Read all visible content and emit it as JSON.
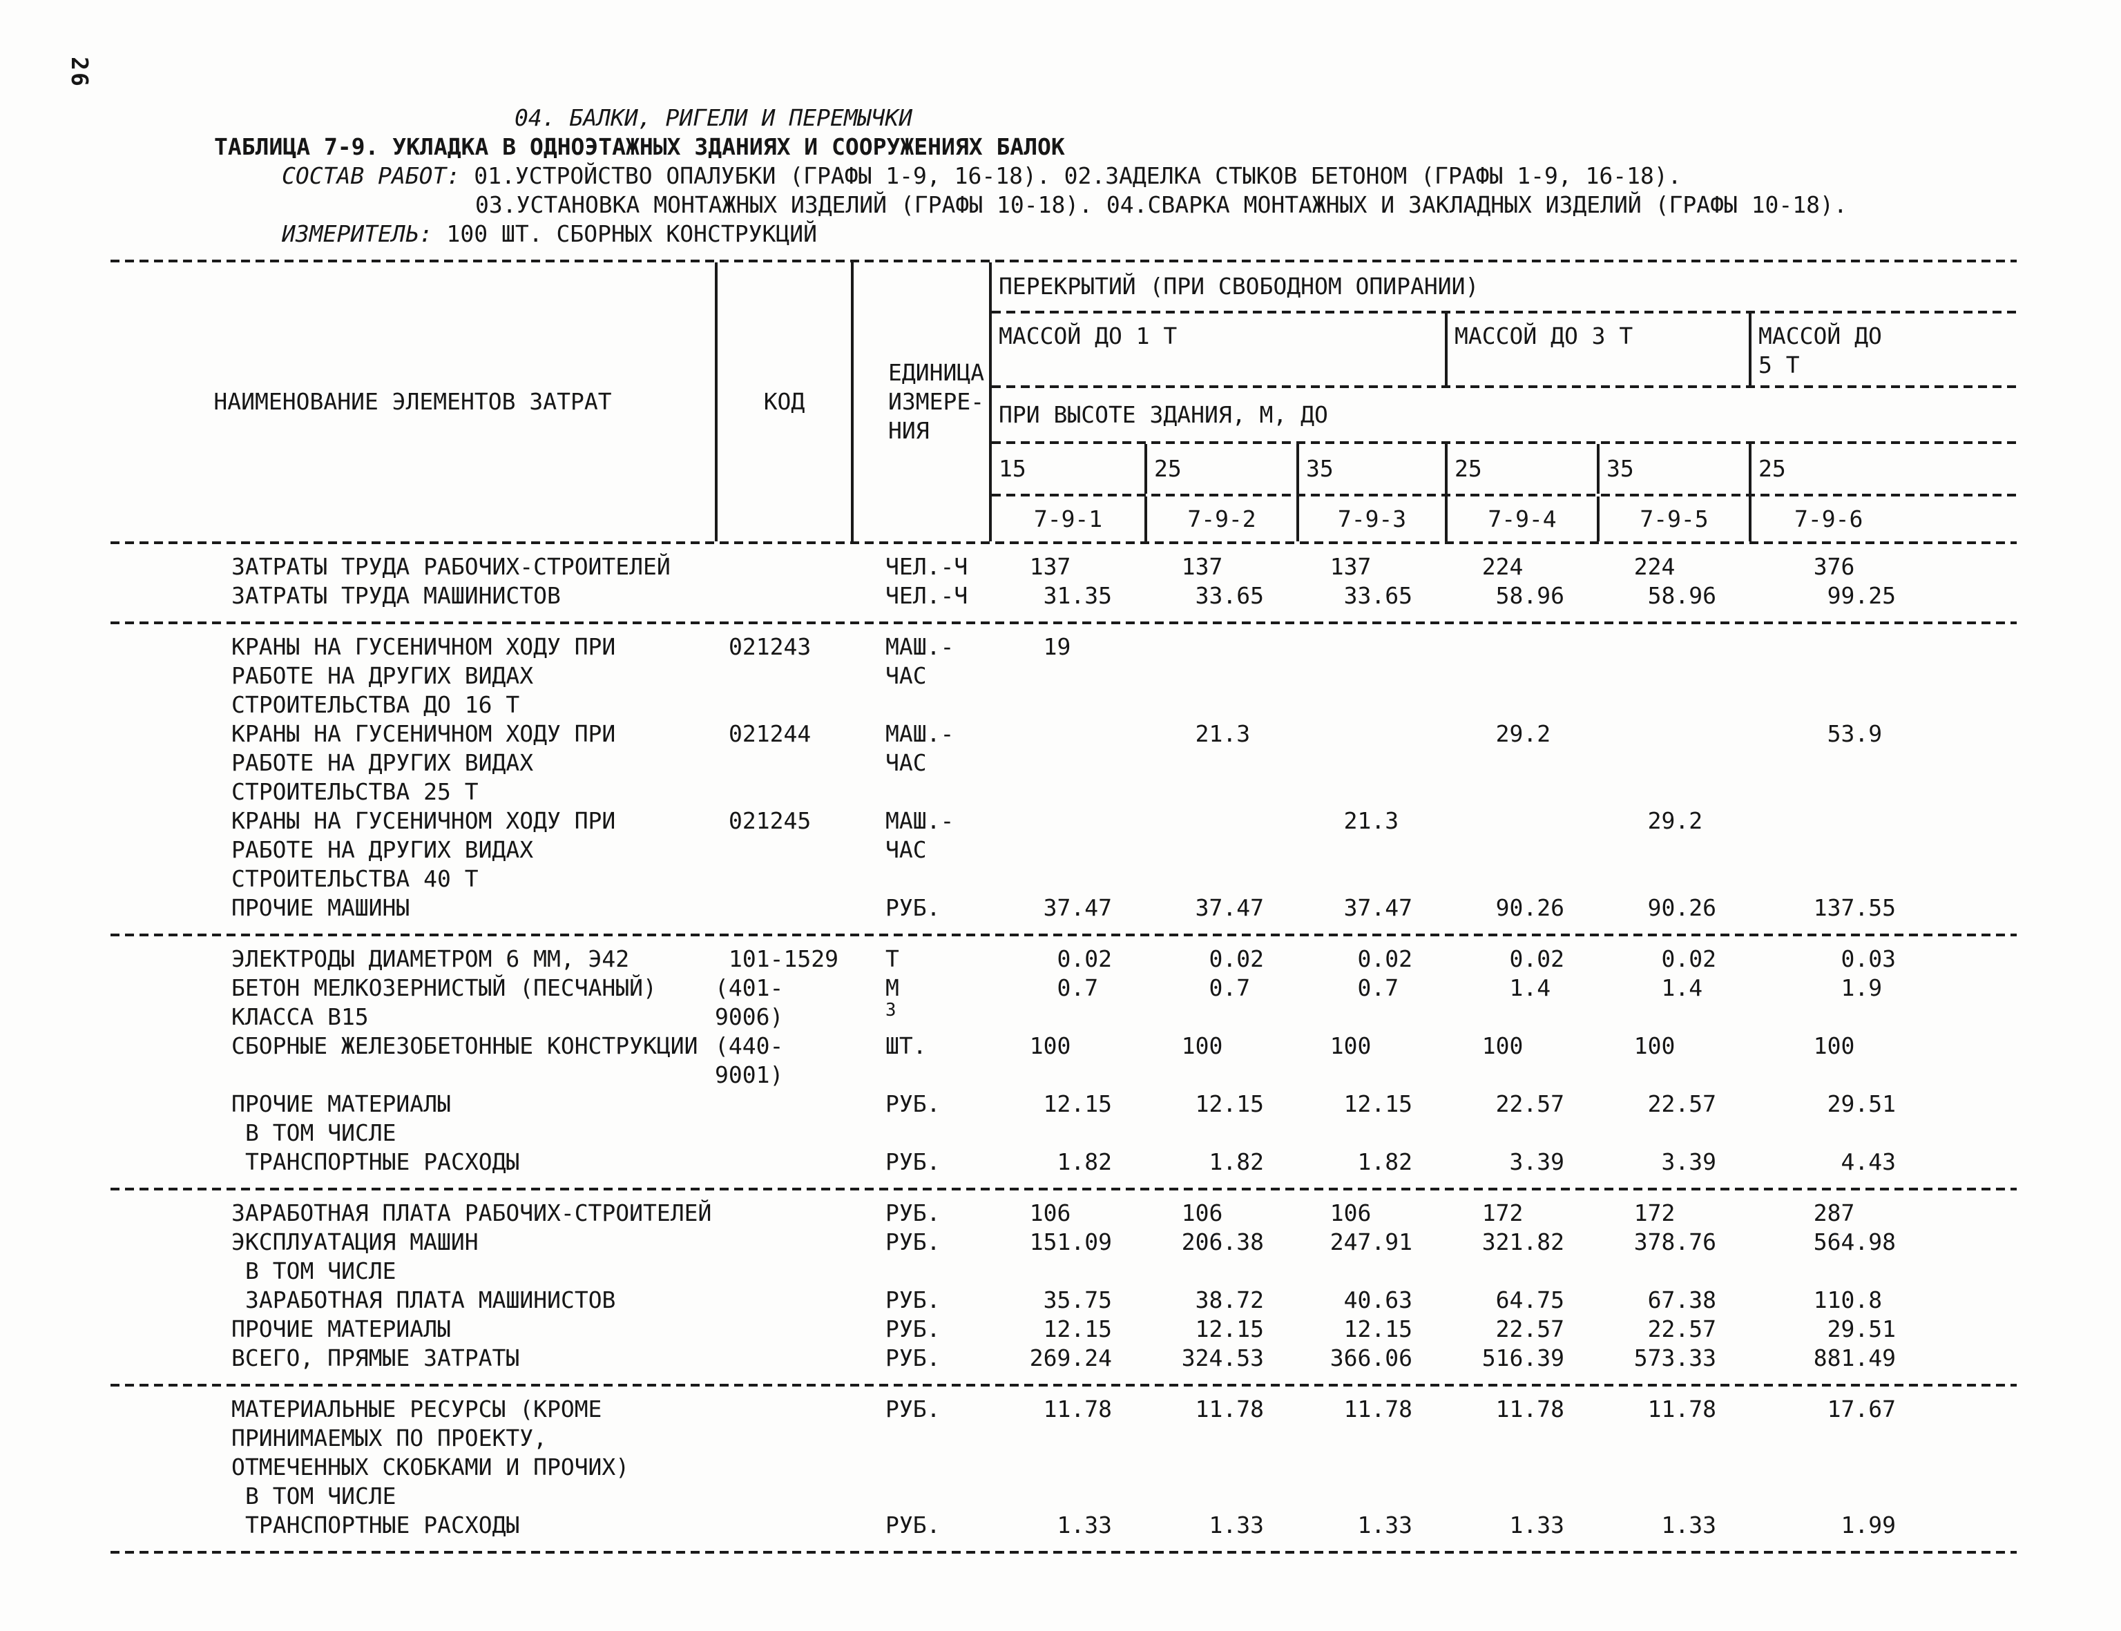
{
  "page": {
    "number": "26",
    "chapter_heading": "04. БАЛКИ, РИГЕЛИ И ПЕРЕМЫЧКИ",
    "table_title": "ТАБЛИЦА 7-9. УКЛАДКА В ОДНОЭТАЖНЫХ ЗДАНИЯХ И СООРУЖЕНИЯХ БАЛОК",
    "work_scope_label": "СОСТАВ РАБОТ:",
    "work_scope_line1": "01.УСТРОЙСТВО ОПАЛУБКИ (ГРАФЫ 1-9, 16-18). 02.ЗАДЕЛКА СТЫКОВ БЕТОНОМ (ГРАФЫ 1-9, 16-18).",
    "work_scope_line2": "03.УСТАНОВКА МОНТАЖНЫХ ИЗДЕЛИЙ (ГРАФЫ 10-18). 04.СВАРКА МОНТАЖНЫХ И ЗАКЛАДНЫХ ИЗДЕЛИЙ (ГРАФЫ 10-18).",
    "measure_label": "ИЗМЕРИТЕЛЬ:",
    "measure_value": "100 ШТ. СБОРНЫХ КОНСТРУКЦИЙ"
  },
  "table": {
    "name_header": "НАИМЕНОВАНИЕ ЭЛЕМЕНТОВ ЗАТРАТ",
    "code_header": "КОД",
    "unit_header_lines": [
      "ЕДИНИЦА",
      "ИЗМЕРЕ-",
      "НИЯ"
    ],
    "span_header": "ПЕРЕКРЫТИЙ (ПРИ СВОБОДНОМ ОПИРАНИИ)",
    "mass_groups": [
      {
        "label": "МАССОЙ ДО 1 Т"
      },
      {
        "label": "МАССОЙ ДО 3 Т"
      },
      {
        "label_line1": "МАССОЙ ДО",
        "label_line2": "5 Т"
      }
    ],
    "height_header": "ПРИ ВЫСОТЕ ЗДАНИЯ, М, ДО",
    "heights": [
      "15",
      "25",
      "35",
      "25",
      "35",
      "25"
    ],
    "col_codes": [
      "7-9-1",
      "7-9-2",
      "7-9-3",
      "7-9-4",
      "7-9-5",
      "7-9-6"
    ],
    "sections": [
      {
        "rows": [
          {
            "name_lines": [
              "ЗАТРАТЫ ТРУДА РАБОЧИХ-СТРОИТЕЛЕЙ"
            ],
            "unit": "ЧЕЛ.-Ч",
            "values": [
              "137",
              "137",
              "137",
              "224",
              "224",
              "376"
            ]
          },
          {
            "name_lines": [
              "ЗАТРАТЫ ТРУДА МАШИНИСТОВ"
            ],
            "unit": "ЧЕЛ.-Ч",
            "values": [
              "31.35",
              "33.65",
              "33.65",
              "58.96",
              "58.96",
              "99.25"
            ]
          }
        ]
      },
      {
        "rows": [
          {
            "name_lines": [
              "КРАНЫ НА ГУСЕНИЧНОМ ХОДУ ПРИ",
              "РАБОТЕ НА ДРУГИХ ВИДАХ",
              "СТРОИТЕЛЬСТВА ДО 16 Т"
            ],
            "code": "021243",
            "unit": "МАШ.-ЧАС",
            "values": [
              "19",
              "",
              "",
              "",
              "",
              ""
            ]
          },
          {
            "name_lines": [
              "КРАНЫ НА ГУСЕНИЧНОМ ХОДУ ПРИ",
              "РАБОТЕ НА ДРУГИХ ВИДАХ",
              "СТРОИТЕЛЬСТВА 25 Т"
            ],
            "code": "021244",
            "unit": "МАШ.-ЧАС",
            "values": [
              "",
              "21.3",
              "",
              "29.2",
              "",
              "53.9"
            ]
          },
          {
            "name_lines": [
              "КРАНЫ НА ГУСЕНИЧНОМ ХОДУ ПРИ",
              "РАБОТЕ НА ДРУГИХ ВИДАХ",
              "СТРОИТЕЛЬСТВА 40 Т"
            ],
            "code": "021245",
            "unit": "МАШ.-ЧАС",
            "values": [
              "",
              "",
              "21.3",
              "",
              "29.2",
              ""
            ]
          },
          {
            "name_lines": [
              "ПРОЧИЕ МАШИНЫ"
            ],
            "unit": "РУБ.",
            "values": [
              "37.47",
              "37.47",
              "37.47",
              "90.26",
              "90.26",
              "137.55"
            ]
          }
        ]
      },
      {
        "rows": [
          {
            "name_lines": [
              "ЭЛЕКТРОДЫ ДИАМЕТРОМ 6 ММ, Э42"
            ],
            "code": "101-1529",
            "unit": "Т",
            "values": [
              "0.02",
              "0.02",
              "0.02",
              "0.02",
              "0.02",
              "0.03"
            ]
          },
          {
            "name_lines": [
              "БЕТОН МЕЛКОЗЕРНИСТЫЙ (ПЕСЧАНЫЙ)",
              "КЛАССА В15"
            ],
            "code": "(401-9006)",
            "unit": "М3",
            "unit_sup": true,
            "values": [
              "0.7",
              "0.7",
              "0.7",
              "1.4",
              "1.4",
              "1.9"
            ]
          },
          {
            "name_lines": [
              "СБОРНЫЕ ЖЕЛЕЗОБЕТОННЫЕ КОНСТРУКЦИИ"
            ],
            "code": "(440-9001)",
            "unit": "ШТ.",
            "values": [
              "100",
              "100",
              "100",
              "100",
              "100",
              "100"
            ]
          },
          {
            "name_lines": [
              "ПРОЧИЕ МАТЕРИАЛЫ"
            ],
            "unit": "РУБ.",
            "values": [
              "12.15",
              "12.15",
              "12.15",
              "22.57",
              "22.57",
              "29.51"
            ]
          },
          {
            "name_lines": [
              "В ТОМ ЧИСЛЕ"
            ],
            "indent": true
          },
          {
            "name_lines": [
              "ТРАНСПОРТНЫЕ РАСХОДЫ"
            ],
            "indent": true,
            "unit": "РУБ.",
            "values": [
              "1.82",
              "1.82",
              "1.82",
              "3.39",
              "3.39",
              "4.43"
            ]
          }
        ]
      },
      {
        "rows": [
          {
            "name_lines": [
              "ЗАРАБОТНАЯ ПЛАТА РАБОЧИХ-СТРОИТЕЛЕЙ"
            ],
            "unit": "РУБ.",
            "values": [
              "106",
              "106",
              "106",
              "172",
              "172",
              "287"
            ]
          },
          {
            "name_lines": [
              "ЭКСПЛУАТАЦИЯ МАШИН"
            ],
            "unit": "РУБ.",
            "values": [
              "151.09",
              "206.38",
              "247.91",
              "321.82",
              "378.76",
              "564.98"
            ]
          },
          {
            "name_lines": [
              "В ТОМ ЧИСЛЕ"
            ],
            "indent": true
          },
          {
            "name_lines": [
              "ЗАРАБОТНАЯ ПЛАТА МАШИНИСТОВ"
            ],
            "indent": true,
            "unit": "РУБ.",
            "values": [
              "35.75",
              "38.72",
              "40.63",
              "64.75",
              "67.38",
              "110.8"
            ]
          },
          {
            "name_lines": [
              "ПРОЧИЕ МАТЕРИАЛЫ"
            ],
            "unit": "РУБ.",
            "values": [
              "12.15",
              "12.15",
              "12.15",
              "22.57",
              "22.57",
              "29.51"
            ]
          },
          {
            "name_lines": [
              "ВСЕГО, ПРЯМЫЕ ЗАТРАТЫ"
            ],
            "unit": "РУБ.",
            "values": [
              "269.24",
              "324.53",
              "366.06",
              "516.39",
              "573.33",
              "881.49"
            ]
          }
        ]
      },
      {
        "rows": [
          {
            "name_lines": [
              "МАТЕРИАЛЬНЫЕ РЕСУРСЫ (КРОМЕ",
              "ПРИНИМАЕМЫХ ПО ПРОЕКТУ,",
              "ОТМЕЧЕННЫХ СКОБКАМИ И ПРОЧИХ)"
            ],
            "unit": "РУБ.",
            "values": [
              "11.78",
              "11.78",
              "11.78",
              "11.78",
              "11.78",
              "17.67"
            ]
          },
          {
            "name_lines": [
              "В ТОМ ЧИСЛЕ"
            ],
            "indent": true
          },
          {
            "name_lines": [
              "ТРАНСПОРТНЫЕ РАСХОДЫ"
            ],
            "indent": true,
            "unit": "РУБ.",
            "values": [
              "1.33",
              "1.33",
              "1.33",
              "1.33",
              "1.33",
              "1.99"
            ]
          }
        ]
      }
    ]
  }
}
